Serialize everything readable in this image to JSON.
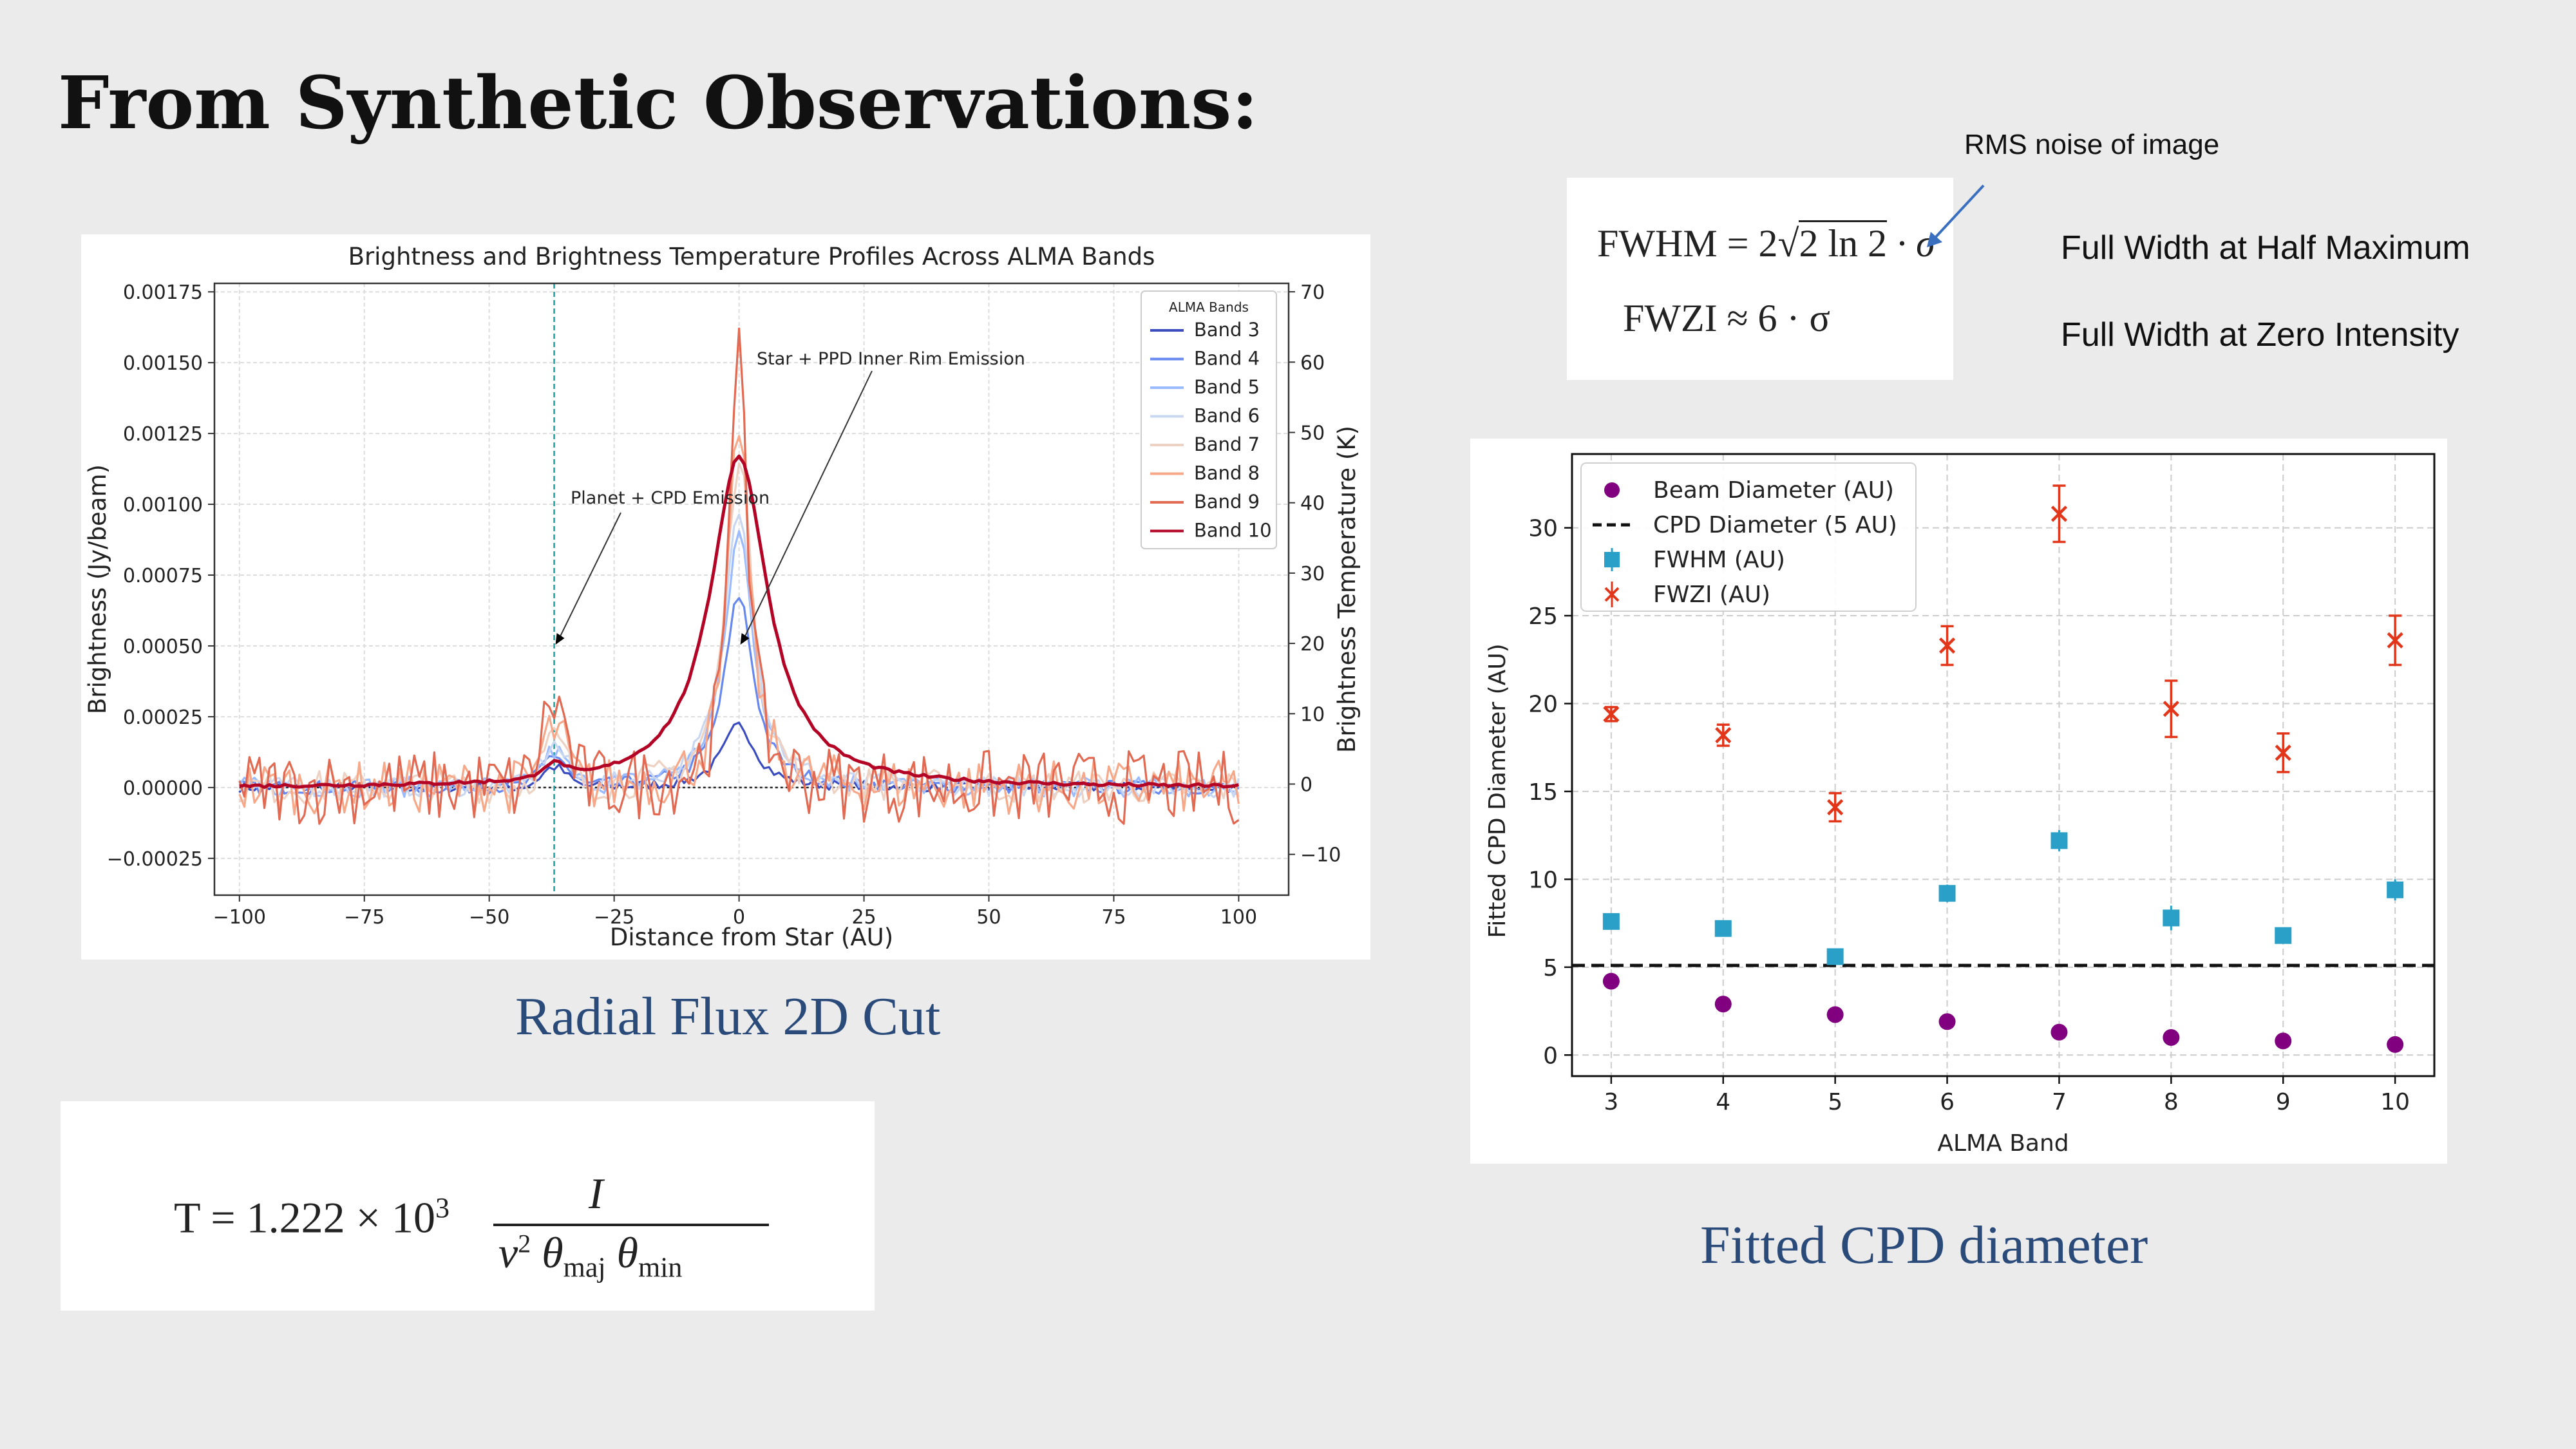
{
  "slide": {
    "title": "From Synthetic Observations:",
    "left_caption": "Radial Flux 2D Cut",
    "right_caption": "Fitted CPD diameter"
  },
  "notes": {
    "rms_label": "RMS noise of image",
    "fwhm_meaning": "Full Width at Half Maximum",
    "fwzi_meaning": "Full Width at Zero Intensity"
  },
  "formulas": {
    "fwhm_lhs": "FWHM = 2",
    "fwhm_root": "2 ln 2",
    "fwhm_rhs": " · σ",
    "fwzi": "FWZI ≈ 6 · σ",
    "temp_lhs": "T = 1.222 × 10",
    "temp_exp": "3",
    "temp_num": "I",
    "temp_den_nu": "ν",
    "temp_den_nu_exp": "2",
    "temp_den_tmaj": " θ",
    "temp_den_maj": "maj",
    "temp_den_tmin": " θ",
    "temp_den_min": "min"
  },
  "chart_data": [
    {
      "type": "line",
      "title": "Brightness and Brightness Temperature Profiles Across ALMA Bands",
      "xlabel": "Distance from Star (AU)",
      "ylabel": "Brightness (Jy/beam)",
      "ylabel_right": "Brightness Temperature (K)",
      "xlim": [
        -105,
        110
      ],
      "ylim": [
        -0.00038,
        0.00178
      ],
      "y2lim": [
        -15.8,
        71.2
      ],
      "xticks": [
        "−100",
        "−75",
        "−50",
        "−25",
        "0",
        "25",
        "50",
        "75",
        "100"
      ],
      "yticks": [
        "−0.00025",
        "0.00000",
        "0.00025",
        "0.00050",
        "0.00075",
        "0.00100",
        "0.00125",
        "0.00150",
        "0.00175"
      ],
      "y2ticks": [
        "−10",
        "0",
        "10",
        "20",
        "30",
        "40",
        "50",
        "60",
        "70"
      ],
      "grid": true,
      "legend_title": "ALMA Bands",
      "legend_position": "top-right",
      "vertical_line_x": -37,
      "annotations": [
        {
          "text": "Planet + CPD Emission",
          "x": -37,
          "y": 0.0005
        },
        {
          "text": "Star + PPD Inner Rim Emission",
          "x": 0,
          "y": 0.0005
        }
      ],
      "series": [
        {
          "name": "Band 3",
          "color": "#3b4cc0",
          "peak": 0.00022,
          "planet": 7e-05,
          "width": 4.0,
          "noise": 1.5e-05
        },
        {
          "name": "Band 4",
          "color": "#6788ee",
          "peak": 0.00068,
          "planet": 0.00011,
          "width": 3.5,
          "noise": 2e-05
        },
        {
          "name": "Band 5",
          "color": "#9abbff",
          "peak": 0.0009,
          "planet": 0.00012,
          "width": 3.5,
          "noise": 3e-05
        },
        {
          "name": "Band 6",
          "color": "#c9d7f0",
          "peak": 0.001,
          "planet": 0.00014,
          "width": 3.5,
          "noise": 3e-05
        },
        {
          "name": "Band 7",
          "color": "#edd1c2",
          "peak": 0.0012,
          "planet": 0.00016,
          "width": 3.0,
          "noise": 5e-05
        },
        {
          "name": "Band 8",
          "color": "#f7a889",
          "peak": 0.0013,
          "planet": 0.0002,
          "width": 2.5,
          "noise": 8e-05
        },
        {
          "name": "Band 9",
          "color": "#e26952",
          "peak": 0.0017,
          "planet": 0.0003,
          "width": 2.0,
          "noise": 0.00011
        },
        {
          "name": "Band 10",
          "color": "#b40426",
          "peak": 0.00117,
          "planet": 5e-05,
          "width": 7.0,
          "noise": 5e-06
        }
      ]
    },
    {
      "type": "scatter",
      "xlabel": "ALMA Band",
      "ylabel": "Fitted CPD Diameter (AU)",
      "xlim": [
        2.65,
        10.35
      ],
      "ylim": [
        -1.2,
        34.2
      ],
      "categories": [
        "3",
        "4",
        "5",
        "6",
        "7",
        "8",
        "9",
        "10"
      ],
      "yticks": [
        "0",
        "5",
        "10",
        "15",
        "20",
        "25",
        "30"
      ],
      "grid": true,
      "legend_position": "top-left",
      "reference_line": {
        "name": "CPD Diameter (5 AU)",
        "value": 5.1
      },
      "series": [
        {
          "name": "Beam Diameter (AU)",
          "color": "#800080",
          "marker": "circle",
          "values": [
            4.2,
            2.9,
            2.3,
            1.9,
            1.3,
            1.0,
            0.8,
            0.6
          ]
        },
        {
          "name": "FWHM (AU)",
          "color": "#2aa0c8",
          "marker": "square",
          "values": [
            7.6,
            7.2,
            5.6,
            9.2,
            12.2,
            7.8,
            6.8,
            9.4
          ],
          "errors": [
            0.2,
            0.2,
            0.2,
            0.5,
            0.6,
            0.7,
            0.2,
            0.6
          ]
        },
        {
          "name": "FWZI (AU)",
          "color": "#e2361b",
          "marker": "x",
          "values": [
            19.4,
            18.2,
            14.1,
            23.3,
            30.8,
            19.7,
            17.2,
            23.6
          ],
          "errors": [
            0.4,
            0.6,
            0.8,
            1.1,
            1.6,
            1.6,
            1.1,
            1.4
          ]
        }
      ]
    }
  ]
}
